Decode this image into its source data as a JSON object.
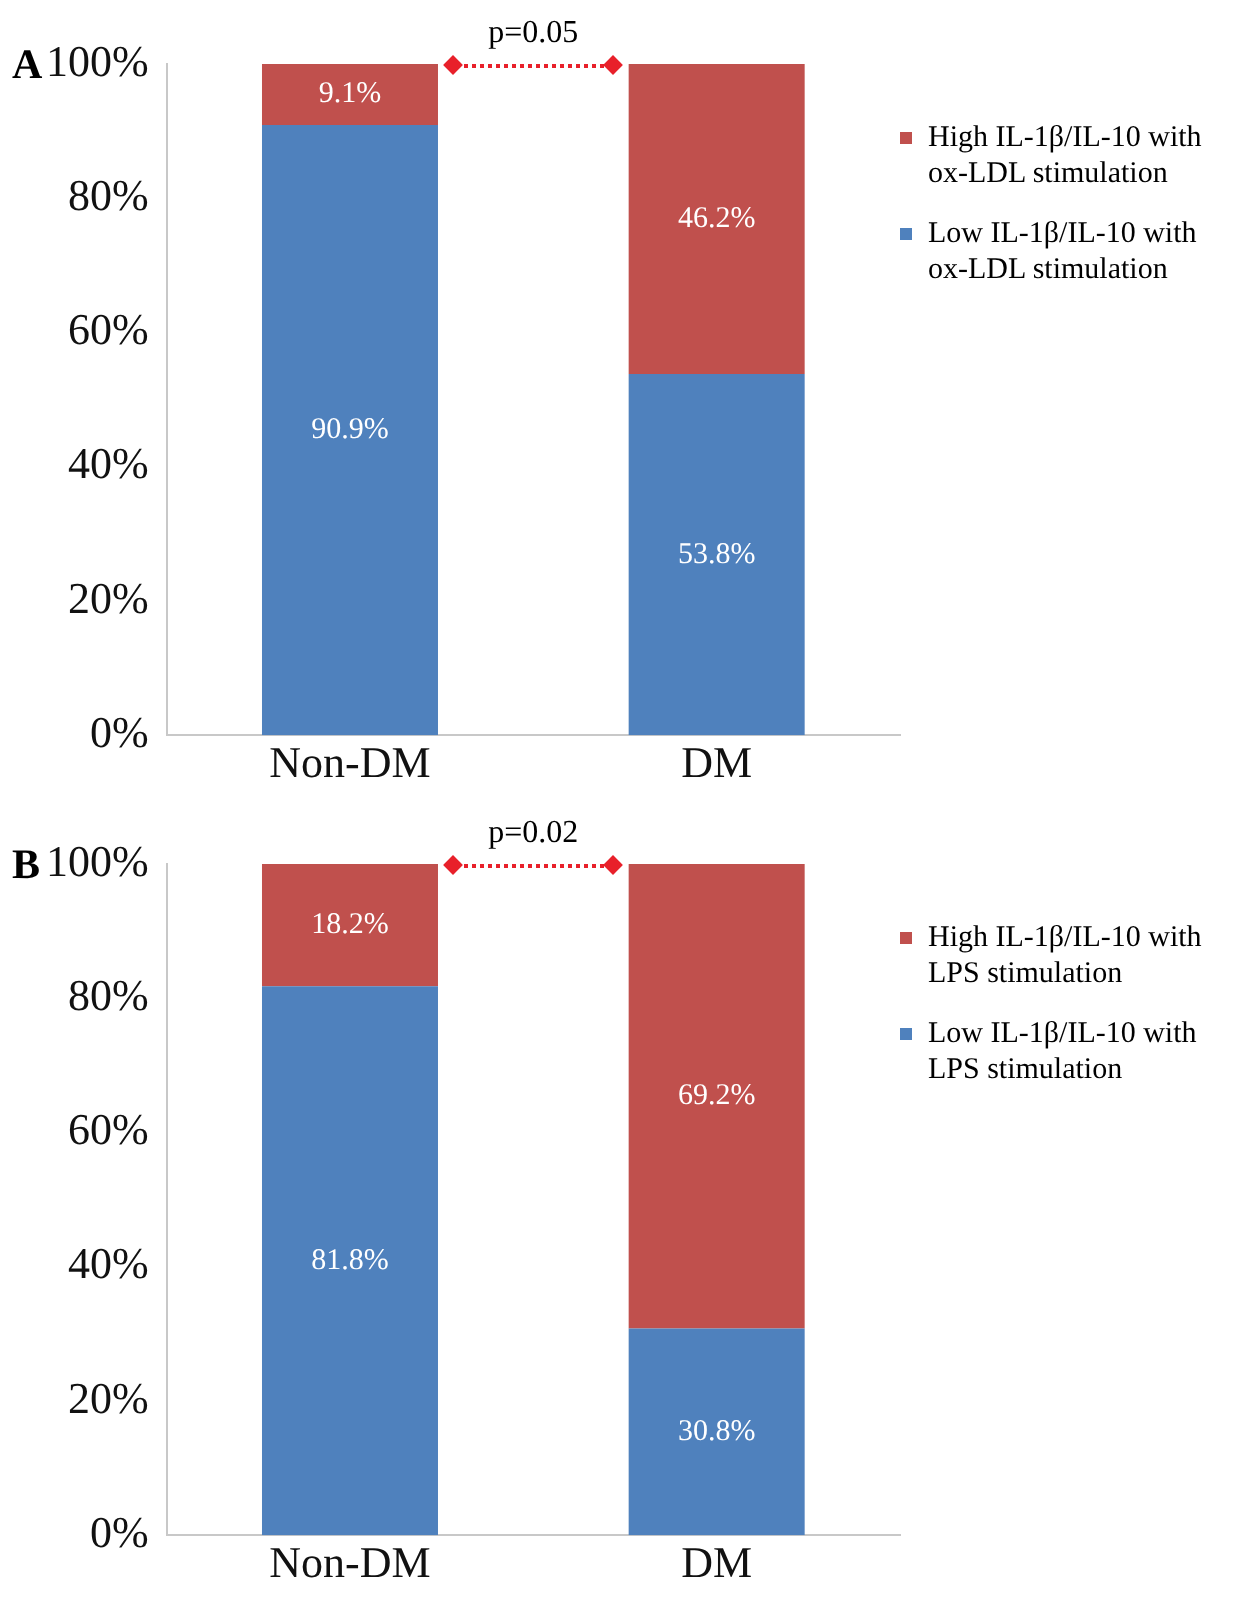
{
  "chart_data": [
    {
      "type": "bar",
      "title": "A",
      "categories": [
        "Non-DM",
        "DM"
      ],
      "stacked": true,
      "legend": "right",
      "grid": false,
      "ylim": [
        0,
        100
      ],
      "yticks": [
        {
          "value": 0,
          "label": "0%"
        },
        {
          "value": 20,
          "label": "20%"
        },
        {
          "value": 40,
          "label": "40%"
        },
        {
          "value": 60,
          "label": "60%"
        },
        {
          "value": 80,
          "label": "80%"
        },
        {
          "value": 100,
          "label": "100%"
        }
      ],
      "annotations": [
        "p=0.05"
      ],
      "series": [
        {
          "name": "Low IL-1β/IL-10 with ox-LDL stimulation",
          "color": "#4f81bd",
          "values": [
            90.9,
            53.8
          ],
          "value_labels": [
            "90.9%",
            "53.8%"
          ]
        },
        {
          "name": "High IL-1β/IL-10 with ox-LDL stimulation",
          "color": "#c0504d",
          "values": [
            9.1,
            46.2
          ],
          "value_labels": [
            "9.1%",
            "46.2%"
          ]
        }
      ]
    },
    {
      "type": "bar",
      "title": "B",
      "categories": [
        "Non-DM",
        "DM"
      ],
      "stacked": true,
      "legend": "right",
      "grid": false,
      "ylim": [
        0,
        100
      ],
      "yticks": [
        {
          "value": 0,
          "label": "0%"
        },
        {
          "value": 20,
          "label": "20%"
        },
        {
          "value": 40,
          "label": "40%"
        },
        {
          "value": 60,
          "label": "60%"
        },
        {
          "value": 80,
          "label": "80%"
        },
        {
          "value": 100,
          "label": "100%"
        }
      ],
      "annotations": [
        "p=0.02"
      ],
      "series": [
        {
          "name": "Low IL-1β/IL-10 with LPS stimulation",
          "color": "#4f81bd",
          "values": [
            81.8,
            30.8
          ],
          "value_labels": [
            "81.8%",
            "30.8%"
          ]
        },
        {
          "name": "High IL-1β/IL-10 with LPS stimulation",
          "color": "#c0504d",
          "values": [
            18.2,
            69.2
          ],
          "value_labels": [
            "18.2%",
            "69.2%"
          ]
        }
      ]
    }
  ]
}
